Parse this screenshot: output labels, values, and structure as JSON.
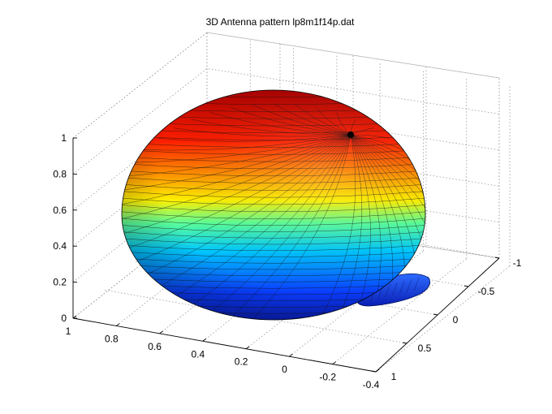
{
  "chart_data": {
    "type": "surface",
    "title": "3D Antenna pattern lp8m1f14p.dat",
    "xlabel": "",
    "ylabel": "",
    "zlabel": "",
    "x_axis": {
      "range": [
        -0.4,
        1
      ],
      "ticks": [
        "1",
        "0.8",
        "0.6",
        "0.4",
        "0.2",
        "0",
        "-0.2",
        "-0.4"
      ]
    },
    "y_axis": {
      "range": [
        -1,
        1
      ],
      "ticks": [
        "1",
        "0.5",
        "0",
        "-0.5",
        "-1"
      ]
    },
    "z_axis": {
      "range": [
        0,
        1
      ],
      "ticks": [
        "0",
        "0.2",
        "0.4",
        "0.6",
        "0.8",
        "1"
      ]
    },
    "grid": true,
    "colormap": "jet",
    "surfaces": [
      {
        "name": "main lobe",
        "shape": "flattened ellipsoid",
        "max_gain": 1
      },
      {
        "name": "back lobe",
        "shape": "small flat lobe",
        "max_gain": 0.2
      }
    ]
  }
}
